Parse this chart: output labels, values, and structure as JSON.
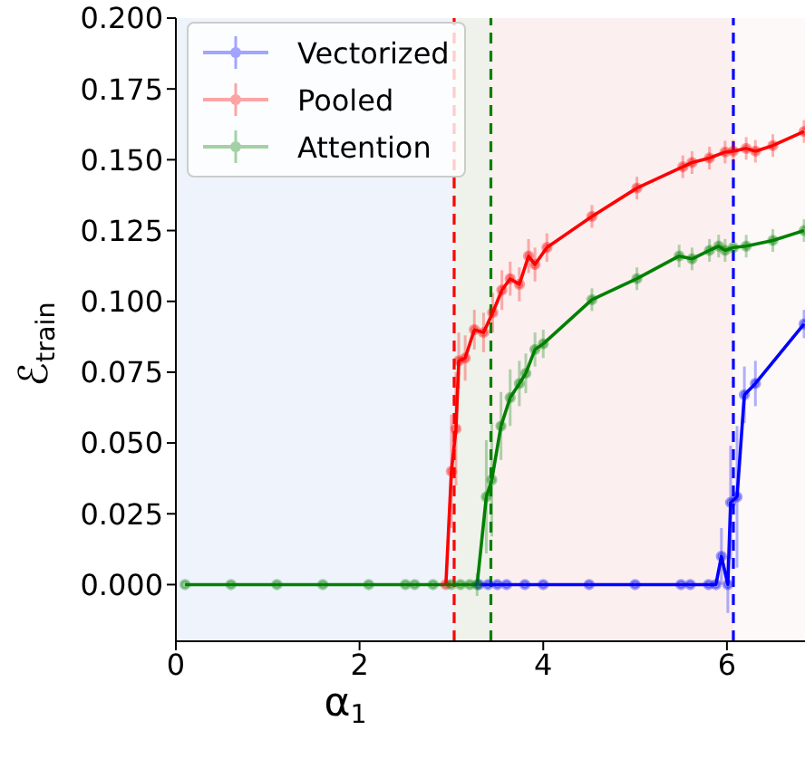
{
  "chart_data": {
    "type": "line",
    "xlabel": "α$_{1}$",
    "ylabel": "ℰ$_{train}$",
    "xlim": [
      0,
      6.85
    ],
    "xticks": [
      0,
      2,
      4,
      6
    ],
    "ylim": [
      -0.02,
      0.2
    ],
    "yticks": [
      {
        "value": 0,
        "label": "0.000"
      },
      {
        "value": 0.025,
        "label": "0.025"
      },
      {
        "value": 0.05,
        "label": "0.050"
      },
      {
        "value": 0.075,
        "label": "0.075"
      },
      {
        "value": 0.1,
        "label": "0.100"
      },
      {
        "value": 0.125,
        "label": "0.125"
      },
      {
        "value": 0.15,
        "label": "0.150"
      },
      {
        "value": 0.175,
        "label": "0.175"
      },
      {
        "value": 0.2,
        "label": "0.200"
      }
    ],
    "legend": "top left",
    "marker": "circle",
    "line_style": "solid",
    "bands": [
      {
        "axis": "x",
        "from": 0,
        "to": 3.03,
        "color": "#eef3fc"
      },
      {
        "axis": "x",
        "from": 3.03,
        "to": 3.43,
        "color": "#eef2ea"
      },
      {
        "axis": "x",
        "from": 3.43,
        "to": 6.07,
        "color": "#fbeff0"
      },
      {
        "axis": "x",
        "from": 6.07,
        "to": 6.85,
        "color": "#fdf9f8"
      }
    ],
    "ref_lines": [
      {
        "axis": "x",
        "value": 3.03,
        "color": "#ff0000",
        "line_style": "dashed"
      },
      {
        "axis": "x",
        "value": 3.43,
        "color": "#008000",
        "line_style": "dashed"
      },
      {
        "axis": "x",
        "value": 6.07,
        "color": "#0000ff",
        "line_style": "dashed"
      }
    ],
    "series": [
      {
        "name": "Vectorized",
        "color": "#0000ff",
        "x": [
          3.3,
          3.4,
          3.5,
          3.6,
          3.8,
          4.0,
          4.5,
          5.0,
          5.5,
          5.6,
          5.8,
          5.88,
          5.94,
          6.01,
          6.04,
          6.11,
          6.19,
          6.31,
          6.84
        ],
        "values": [
          0,
          0,
          0,
          0,
          0,
          0,
          0,
          0,
          0,
          0,
          0,
          0,
          0.01,
          0,
          0.029,
          0.031,
          0.067,
          0.071,
          0.092
        ],
        "errors": [
          null,
          null,
          null,
          null,
          null,
          null,
          null,
          null,
          null,
          null,
          null,
          null,
          0.01,
          0.01,
          0.02,
          0.025,
          0.01,
          0.008,
          0.005
        ]
      },
      {
        "name": "Pooled",
        "color": "#ff0000",
        "x": [
          2.94,
          3.0,
          3.05,
          3.08,
          3.15,
          3.25,
          3.35,
          3.45,
          3.55,
          3.64,
          3.74,
          3.84,
          3.91,
          4.04,
          4.53,
          5.02,
          5.52,
          5.62,
          5.81,
          5.98,
          6.07,
          6.21,
          6.31,
          6.5,
          6.84
        ],
        "values": [
          0,
          0.04,
          0.055,
          0.079,
          0.08,
          0.09,
          0.089,
          0.096,
          0.104,
          0.108,
          0.106,
          0.116,
          0.113,
          0.119,
          0.13,
          0.14,
          0.1475,
          0.149,
          0.1506,
          0.1527,
          0.153,
          0.154,
          0.153,
          0.155,
          0.16
        ],
        "errors": [
          null,
          0.02,
          0.02,
          0.01,
          0.008,
          0.007,
          0.007,
          0.007,
          0.007,
          0.006,
          0.006,
          0.006,
          0.006,
          0.005,
          0.004,
          0.004,
          0.004,
          0.004,
          0.004,
          0.004,
          0.004,
          0.004,
          0.004,
          0.004,
          0.004
        ]
      },
      {
        "name": "Attention",
        "color": "#008000",
        "x": [
          0.1,
          0.6,
          1.1,
          1.6,
          2.1,
          2.5,
          2.6,
          2.8,
          3.0,
          3.1,
          3.2,
          3.28,
          3.38,
          3.44,
          3.54,
          3.64,
          3.74,
          3.81,
          3.91,
          4.0,
          4.53,
          5.02,
          5.48,
          5.62,
          5.81,
          5.91,
          5.98,
          6.07,
          6.21,
          6.5,
          6.84
        ],
        "values": [
          0,
          0,
          0,
          0,
          0,
          0,
          0,
          0,
          0,
          0,
          0,
          0,
          0.031,
          0.037,
          0.056,
          0.066,
          0.071,
          0.0746,
          0.083,
          0.085,
          0.1006,
          0.108,
          0.116,
          0.115,
          0.118,
          0.1195,
          0.118,
          0.119,
          0.1195,
          0.1215,
          0.125
        ],
        "errors": [
          null,
          null,
          null,
          null,
          null,
          null,
          null,
          null,
          null,
          null,
          null,
          0.004,
          0.02,
          0.02,
          0.012,
          0.01,
          0.008,
          0.007,
          0.006,
          0.005,
          0.004,
          0.004,
          0.004,
          0.004,
          0.004,
          0.004,
          0.004,
          null,
          0.004,
          0.004,
          0.004
        ]
      }
    ]
  }
}
